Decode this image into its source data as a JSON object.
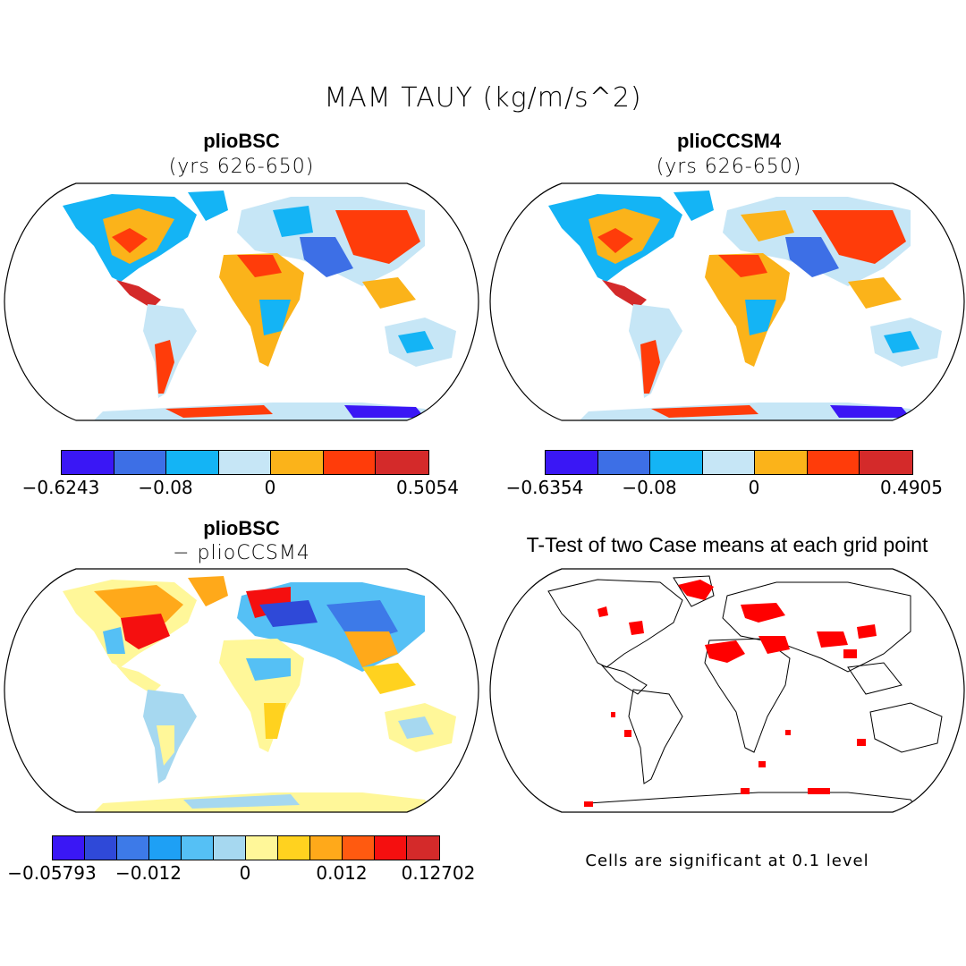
{
  "title": "MAM TAUY (kg/m/s^2)",
  "panels": {
    "top_left": {
      "title": "plioBSC",
      "subtitle": "(yrs 626-650)",
      "colorbar": {
        "colors": [
          "#3a17f5",
          "#3d6fe6",
          "#14b4f5",
          "#c6e6f6",
          "#fbb31a",
          "#ff3c0a",
          "#d42a2a"
        ],
        "labels": [
          "−0.6243",
          "−0.08",
          "0",
          "0.5054"
        ]
      }
    },
    "top_right": {
      "title": "plioCCSM4",
      "subtitle": "(yrs 626-650)",
      "colorbar": {
        "colors": [
          "#3a17f5",
          "#3d6fe6",
          "#14b4f5",
          "#c6e6f6",
          "#fbb31a",
          "#ff3c0a",
          "#d42a2a"
        ],
        "labels": [
          "−0.6354",
          "−0.08",
          "0",
          "0.4905"
        ]
      }
    },
    "bottom_left": {
      "title": "plioBSC",
      "subtitle": "− plioCCSM4",
      "colorbar": {
        "colors": [
          "#3a17f5",
          "#2f49d8",
          "#3d7ae8",
          "#1ea0f5",
          "#55c0f5",
          "#a6d8f0",
          "#fff799",
          "#ffd21f",
          "#ffa91a",
          "#ff5a10",
          "#f50f0f",
          "#d42a2a"
        ],
        "labels": [
          "−0.05793",
          "−0.012",
          "0",
          "0.012",
          "0.12702"
        ]
      }
    },
    "bottom_right": {
      "title": "T-Test of two Case means at each grid point",
      "footnote": "Cells are significant at 0.1 level",
      "significance_color": "#ff0000"
    }
  },
  "land_fill_colors": {
    "top": "#c6e6f6",
    "diff": "#fff799"
  }
}
